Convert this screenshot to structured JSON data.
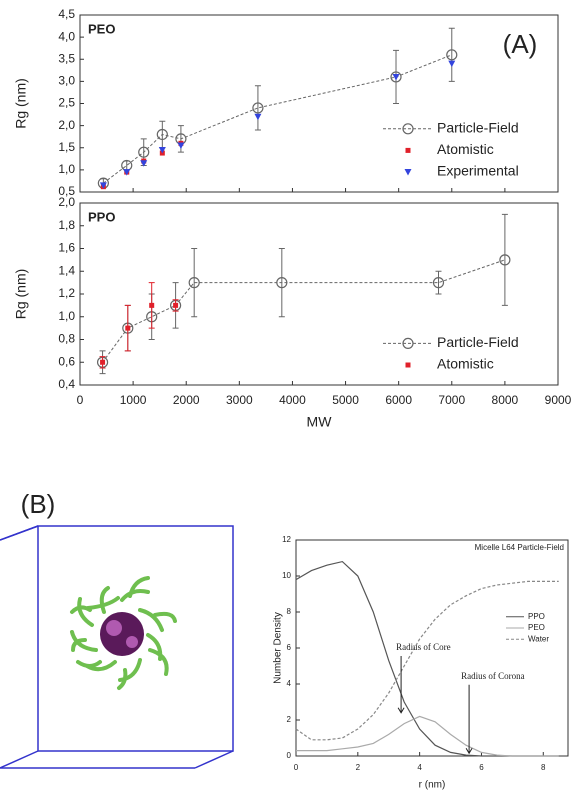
{
  "panel_labels": [
    "(A)",
    "(B)"
  ],
  "chart_data": [
    {
      "type": "line",
      "title": "PEO",
      "y_label": "Rg (nm)",
      "xlim": [
        0,
        9000
      ],
      "xticks": [
        0,
        1000,
        2000,
        3000,
        4000,
        5000,
        6000,
        7000,
        8000,
        9000
      ],
      "ylim": [
        0.5,
        4.5
      ],
      "yticks": [
        {
          "value": 0.5,
          "label": "0,5"
        },
        {
          "value": 1.0,
          "label": "1,0"
        },
        {
          "value": 1.5,
          "label": "1,5"
        },
        {
          "value": 2.0,
          "label": "2,0"
        },
        {
          "value": 2.5,
          "label": "2,5"
        },
        {
          "value": 3.0,
          "label": "3,0"
        },
        {
          "value": 3.5,
          "label": "3,5"
        },
        {
          "value": 4.0,
          "label": "4,0"
        },
        {
          "value": 4.5,
          "label": "4,5"
        }
      ],
      "legend": "lower right",
      "series": [
        {
          "name": "Particle-Field",
          "color": "#666666",
          "marker": "circle",
          "line": true,
          "x": [
            440,
            880,
            1200,
            1550,
            1900,
            3350,
            5950,
            7000
          ],
          "values": [
            0.7,
            1.1,
            1.4,
            1.8,
            1.7,
            2.4,
            3.1,
            3.6
          ],
          "errors": [
            0.1,
            0.1,
            0.3,
            0.3,
            0.3,
            0.5,
            0.6,
            0.6
          ]
        },
        {
          "name": "Atomistic",
          "color": "#e0202a",
          "marker": "square",
          "line": false,
          "x": [
            440,
            880,
            1200,
            1550,
            1900
          ],
          "values": [
            0.62,
            0.95,
            1.2,
            1.38,
            1.6
          ]
        },
        {
          "name": "Experimental",
          "color": "#3344dd",
          "marker": "triangle",
          "line": false,
          "x": [
            440,
            880,
            1200,
            1550,
            1900,
            3350,
            5950,
            7000
          ],
          "values": [
            0.65,
            0.95,
            1.15,
            1.45,
            1.55,
            2.2,
            3.1,
            3.4
          ]
        }
      ]
    },
    {
      "type": "line",
      "title": "PPO",
      "y_label": "Rg (nm)",
      "x_label": "MW",
      "xlim": [
        0,
        9000
      ],
      "xticks": [
        0,
        1000,
        2000,
        3000,
        4000,
        5000,
        6000,
        7000,
        8000,
        9000
      ],
      "ylim": [
        0.4,
        2.0
      ],
      "yticks": [
        {
          "value": 0.4,
          "label": "0,4"
        },
        {
          "value": 0.6,
          "label": "0,6"
        },
        {
          "value": 0.8,
          "label": "0,8"
        },
        {
          "value": 1.0,
          "label": "1,0"
        },
        {
          "value": 1.2,
          "label": "1,2"
        },
        {
          "value": 1.4,
          "label": "1,4"
        },
        {
          "value": 1.6,
          "label": "1,6"
        },
        {
          "value": 1.8,
          "label": "1,8"
        },
        {
          "value": 2.0,
          "label": "2,0"
        }
      ],
      "legend": "lower right",
      "series": [
        {
          "name": "Particle-Field",
          "color": "#666666",
          "marker": "circle",
          "line": true,
          "x": [
            425,
            900,
            1350,
            1800,
            2150,
            3800,
            6750,
            8000
          ],
          "values": [
            0.6,
            0.9,
            1.0,
            1.1,
            1.3,
            1.3,
            1.3,
            1.5
          ],
          "errors": [
            0.1,
            0.2,
            0.2,
            0.2,
            0.3,
            0.3,
            0.1,
            0.4
          ]
        },
        {
          "name": "Atomistic",
          "color": "#e0202a",
          "marker": "square",
          "line": false,
          "x": [
            425,
            900,
            1350,
            1800
          ],
          "values": [
            0.6,
            0.9,
            1.1,
            1.1
          ],
          "errors": [
            0.05,
            0.2,
            0.2,
            0.05
          ]
        }
      ]
    },
    {
      "type": "line",
      "title": "Micelle L64 Particle-Field",
      "x_label": "r (nm)",
      "y_label": "Number Density",
      "annotations": [
        "Radius of Core",
        "Radius of Corona"
      ],
      "xlim": [
        0,
        8.8
      ],
      "xticks": [
        0,
        2,
        4,
        6,
        8
      ],
      "ylim": [
        0,
        12
      ],
      "yticks": [
        0,
        2,
        4,
        6,
        8,
        10,
        12
      ],
      "legend": "right",
      "series": [
        {
          "name": "PPO",
          "color": "#555555",
          "line": true,
          "x": [
            0,
            0.5,
            1,
            1.5,
            2,
            2.5,
            3,
            3.5,
            4,
            4.5,
            5,
            5.5,
            6,
            6.5,
            7,
            7.5,
            8,
            8.5
          ],
          "values": [
            9.8,
            10.3,
            10.6,
            10.8,
            10.0,
            8.0,
            5.3,
            3.0,
            1.5,
            0.6,
            0.2,
            0.05,
            0,
            0,
            0,
            0,
            0,
            0
          ]
        },
        {
          "name": "PEO",
          "color": "#aaaaaa",
          "line": true,
          "x": [
            0,
            0.5,
            1,
            1.5,
            2,
            2.5,
            3,
            3.5,
            4,
            4.5,
            5,
            5.5,
            6,
            6.5,
            7,
            7.5,
            8,
            8.5
          ],
          "values": [
            0.3,
            0.3,
            0.3,
            0.4,
            0.5,
            0.7,
            1.2,
            1.8,
            2.2,
            1.9,
            1.2,
            0.6,
            0.2,
            0.05,
            0,
            0,
            0,
            0
          ]
        },
        {
          "name": "Water",
          "color": "#888888",
          "line": true,
          "dashed": true,
          "x": [
            0,
            0.5,
            1,
            1.5,
            2,
            2.5,
            3,
            3.5,
            4,
            4.5,
            5,
            5.5,
            6,
            6.5,
            7,
            7.5,
            8,
            8.5
          ],
          "values": [
            1.5,
            0.9,
            0.9,
            1.0,
            1.5,
            2.3,
            3.5,
            5.0,
            6.5,
            7.6,
            8.4,
            8.9,
            9.3,
            9.5,
            9.6,
            9.7,
            9.7,
            9.7
          ]
        }
      ]
    }
  ]
}
